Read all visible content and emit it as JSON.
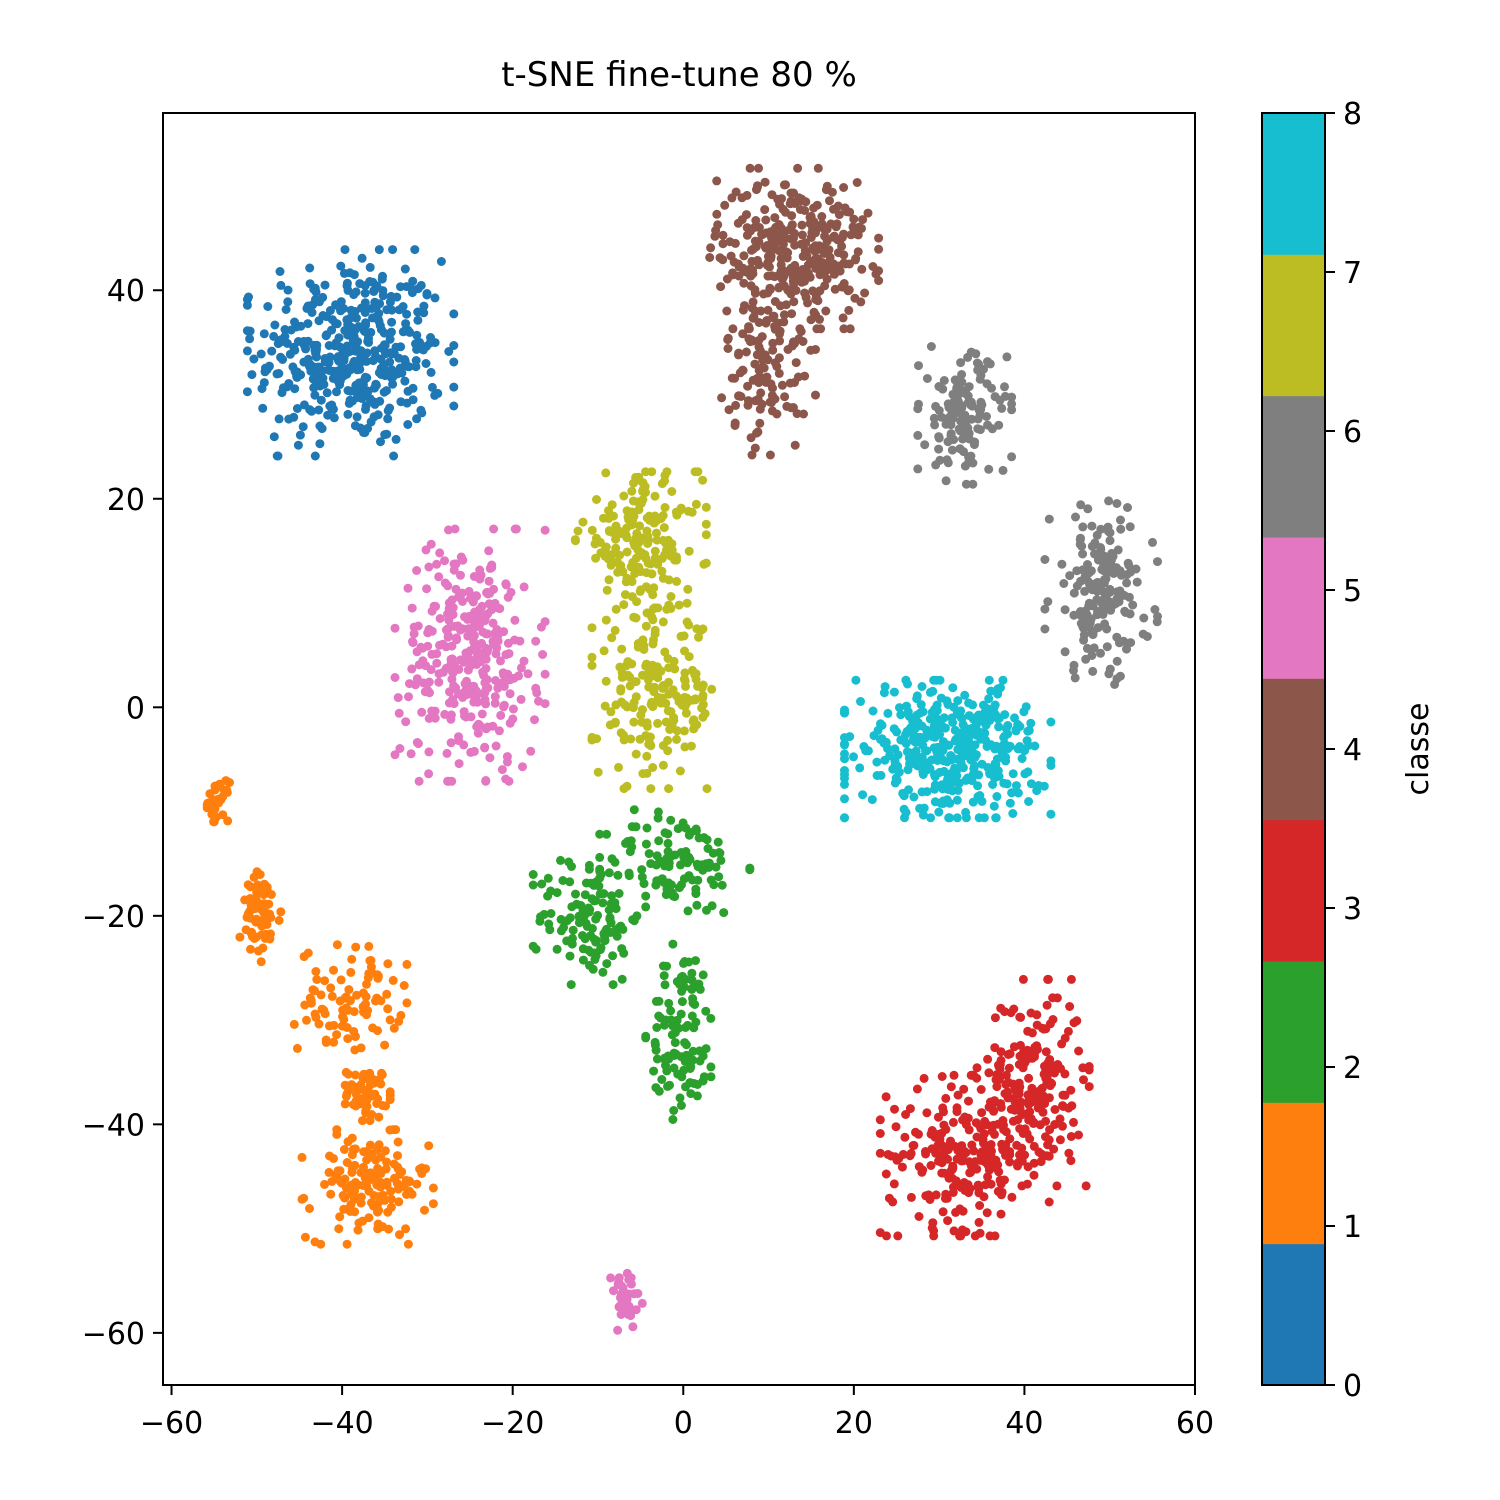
{
  "chart_data": {
    "type": "scatter",
    "title": "t-SNE fine-tune 80 %",
    "xlim": [
      -61,
      60
    ],
    "ylim": [
      -65,
      57
    ],
    "x_ticks": [
      -60,
      -40,
      -20,
      0,
      20,
      40,
      60
    ],
    "y_ticks": [
      -60,
      -40,
      -20,
      0,
      20,
      40
    ],
    "x_tick_labels": [
      "−60",
      "−40",
      "−20",
      "0",
      "20",
      "40",
      "60"
    ],
    "y_tick_labels": [
      "−60",
      "−40",
      "−20",
      "0",
      "20",
      "40"
    ],
    "grid": false,
    "colorbar": {
      "label": "classe",
      "range": [
        0,
        8
      ],
      "ticks": [
        0,
        1,
        2,
        3,
        4,
        5,
        6,
        7,
        8
      ],
      "tick_labels": [
        "0",
        "1",
        "2",
        "3",
        "4",
        "5",
        "6",
        "7",
        "8"
      ],
      "colors": [
        "#1f77b4",
        "#ff7f0e",
        "#2ca02c",
        "#d62728",
        "#8c564b",
        "#e377c2",
        "#7f7f7f",
        "#bcbd22",
        "#17becf"
      ]
    },
    "series": [
      {
        "class": 0,
        "color": "#1f77b4",
        "clusters": [
          {
            "cx": -39,
            "cy": 34,
            "sx": 5.5,
            "sy": 4.5,
            "n": 420
          }
        ]
      },
      {
        "class": 1,
        "color": "#ff7f0e",
        "clusters": [
          {
            "cx": -54.5,
            "cy": -9,
            "sx": 0.6,
            "sy": 0.9,
            "n": 30
          },
          {
            "cx": -49.5,
            "cy": -20,
            "sx": 1.2,
            "sy": 2.0,
            "n": 70
          },
          {
            "cx": -39,
            "cy": -28,
            "sx": 3.0,
            "sy": 2.5,
            "n": 90
          },
          {
            "cx": -37,
            "cy": -37,
            "sx": 1.2,
            "sy": 1.2,
            "n": 60
          },
          {
            "cx": -37,
            "cy": -46,
            "sx": 3.5,
            "sy": 2.5,
            "n": 150
          }
        ]
      },
      {
        "class": 2,
        "color": "#2ca02c",
        "clusters": [
          {
            "cx": -11,
            "cy": -20,
            "sx": 3.0,
            "sy": 3.0,
            "n": 120
          },
          {
            "cx": -1,
            "cy": -15,
            "sx": 4.0,
            "sy": 2.5,
            "n": 110
          },
          {
            "cx": 0,
            "cy": -31,
            "sx": 2.0,
            "sy": 4.0,
            "n": 110
          }
        ]
      },
      {
        "class": 3,
        "color": "#d62728",
        "clusters": [
          {
            "cx": 33,
            "cy": -43,
            "sx": 4.5,
            "sy": 3.5,
            "n": 230
          },
          {
            "cx": 41,
            "cy": -36,
            "sx": 3.0,
            "sy": 4.5,
            "n": 200
          }
        ]
      },
      {
        "class": 4,
        "color": "#8c564b",
        "clusters": [
          {
            "cx": 13,
            "cy": 44,
            "sx": 4.5,
            "sy": 3.5,
            "n": 320
          },
          {
            "cx": 10,
            "cy": 33,
            "sx": 2.5,
            "sy": 4.0,
            "n": 120
          }
        ]
      },
      {
        "class": 5,
        "color": "#e377c2",
        "clusters": [
          {
            "cx": -25,
            "cy": 5,
            "sx": 4.0,
            "sy": 5.5,
            "n": 320
          },
          {
            "cx": -7,
            "cy": -57,
            "sx": 1.0,
            "sy": 1.5,
            "n": 40
          }
        ]
      },
      {
        "class": 6,
        "color": "#7f7f7f",
        "clusters": [
          {
            "cx": 33,
            "cy": 28,
            "sx": 2.5,
            "sy": 3.0,
            "n": 130
          },
          {
            "cx": 49,
            "cy": 11,
            "sx": 3.0,
            "sy": 4.0,
            "n": 170
          }
        ]
      },
      {
        "class": 7,
        "color": "#bcbd22",
        "clusters": [
          {
            "cx": -5,
            "cy": 16,
            "sx": 3.5,
            "sy": 3.0,
            "n": 180
          },
          {
            "cx": -3,
            "cy": 1,
            "sx": 3.5,
            "sy": 4.0,
            "n": 190
          }
        ]
      },
      {
        "class": 8,
        "color": "#17becf",
        "clusters": [
          {
            "cx": 31,
            "cy": -4,
            "sx": 5.5,
            "sy": 3.0,
            "n": 400
          }
        ]
      }
    ]
  }
}
